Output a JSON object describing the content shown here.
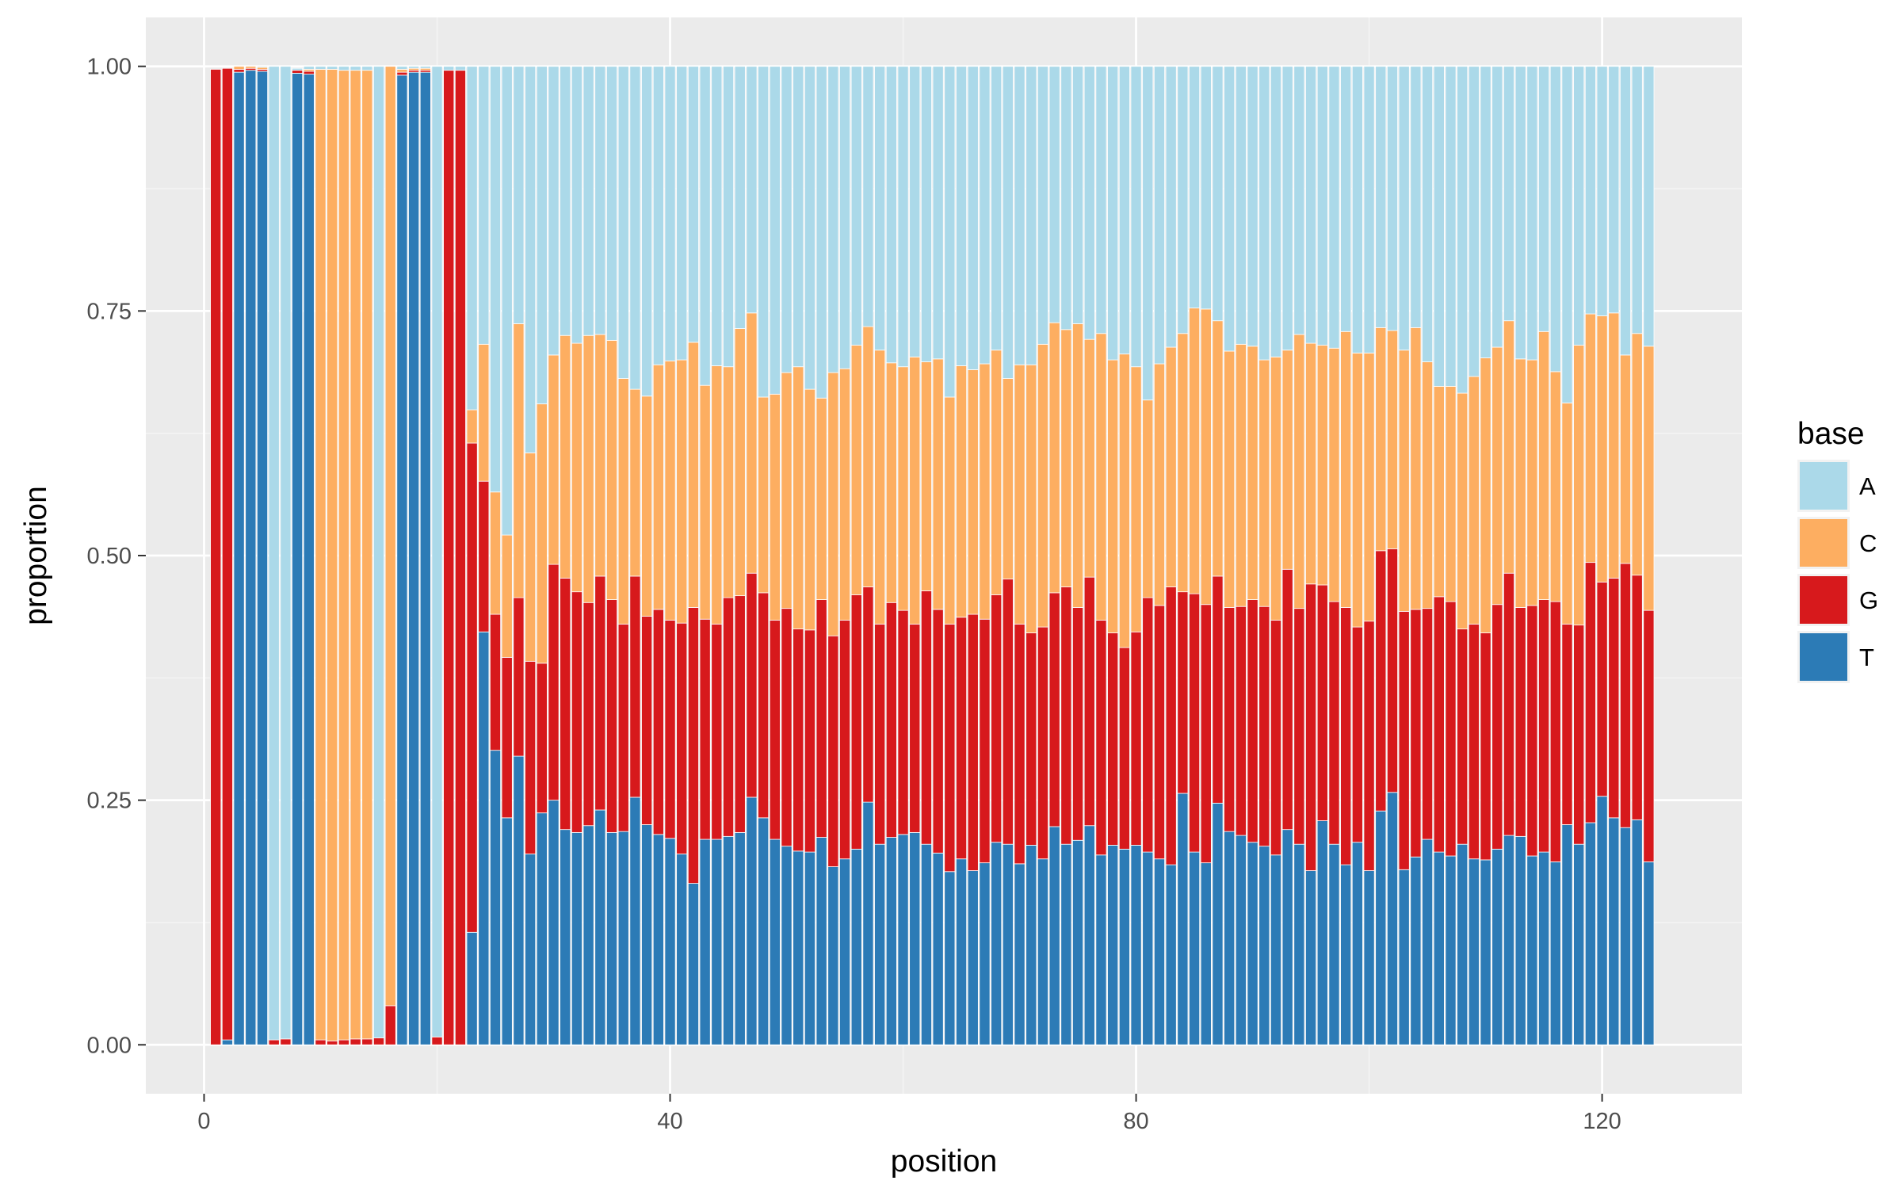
{
  "chart_data": {
    "type": "bar",
    "stacked": true,
    "normalized": true,
    "xlabel": "position",
    "ylabel": "proportion",
    "xlim": [
      -5,
      132
    ],
    "ylim": [
      -0.05,
      1.05
    ],
    "x_ticks": [
      0,
      40,
      80,
      120
    ],
    "y_ticks": [
      0.0,
      0.25,
      0.5,
      0.75,
      1.0
    ],
    "y_tick_labels": [
      "0.00",
      "0.25",
      "0.50",
      "0.75",
      "1.00"
    ],
    "grid": true,
    "legend": {
      "title": "base",
      "placement": "right",
      "entries": [
        "A",
        "C",
        "G",
        "T"
      ]
    },
    "colors": {
      "A": "#abd9e9",
      "C": "#fdae61",
      "G": "#d7191c",
      "T": "#2c7bb6",
      "panel_background": "#ebebeb",
      "grid_major": "#ffffff",
      "grid_minor": "#f5f5f5",
      "text": "#4d4d4d",
      "axis_title": "#000000"
    },
    "stack_order_bottom_to_top": [
      "T",
      "G",
      "C",
      "A"
    ],
    "x": [
      1,
      2,
      3,
      4,
      5,
      6,
      7,
      8,
      9,
      10,
      11,
      12,
      13,
      14,
      15,
      16,
      17,
      18,
      19,
      20,
      21,
      22,
      23,
      24,
      25,
      26,
      27,
      28,
      29,
      30,
      31,
      32,
      33,
      34,
      35,
      36,
      37,
      38,
      39,
      40,
      41,
      42,
      43,
      44,
      45,
      46,
      47,
      48,
      49,
      50,
      51,
      52,
      53,
      54,
      55,
      56,
      57,
      58,
      59,
      60,
      61,
      62,
      63,
      64,
      65,
      66,
      67,
      68,
      69,
      70,
      71,
      72,
      73,
      74,
      75,
      76,
      77,
      78,
      79,
      80,
      81,
      82,
      83,
      84,
      85,
      86,
      87,
      88,
      89,
      90,
      91,
      92,
      93,
      94,
      95,
      96,
      97,
      98,
      99,
      100,
      101,
      102,
      103,
      104,
      105,
      106,
      107,
      108,
      109,
      110,
      111,
      112,
      113,
      114,
      115,
      116,
      117,
      118,
      119,
      120,
      121,
      122,
      123,
      124,
      125
    ],
    "series": [
      {
        "name": "T",
        "values": [
          0.0,
          0.005,
          0.994,
          0.996,
          0.995,
          0.0,
          0.0,
          0.993,
          0.992,
          0.0,
          0.0,
          0.0,
          0.0,
          0.0,
          0.0,
          0.0,
          0.991,
          0.994,
          0.994,
          0.0,
          0.0,
          0.0,
          0.115,
          0.422,
          0.301,
          0.232,
          0.295,
          0.195,
          0.237,
          0.25,
          0.22,
          0.217,
          0.224,
          0.24,
          0.217,
          0.218,
          0.253,
          0.225,
          0.215,
          0.211,
          0.195,
          0.165,
          0.21,
          0.21,
          0.213,
          0.217,
          0.253,
          0.232,
          0.21,
          0.203,
          0.198,
          0.197,
          0.212,
          0.182,
          0.19,
          0.2,
          0.248,
          0.205,
          0.212,
          0.215,
          0.217,
          0.205,
          0.196,
          0.177,
          0.19,
          0.178,
          0.186,
          0.207,
          0.205,
          0.185,
          0.204,
          0.19,
          0.223,
          0.205,
          0.209,
          0.224,
          0.194,
          0.204,
          0.2,
          0.204,
          0.197,
          0.19,
          0.184,
          0.257,
          0.197,
          0.186,
          0.247,
          0.218,
          0.214,
          0.207,
          0.203,
          0.194,
          0.22,
          0.205,
          0.178,
          0.229,
          0.205,
          0.184,
          0.207,
          0.178,
          0.239,
          0.258,
          0.179,
          0.192,
          0.21,
          0.197,
          0.193,
          0.205,
          0.19,
          0.189,
          0.2,
          0.214,
          0.213,
          0.193,
          0.197,
          0.187,
          0.225,
          0.205,
          0.227,
          0.254,
          0.232,
          0.222,
          0.23,
          0.187,
          0.0
        ]
      },
      {
        "name": "G",
        "values": [
          0.997,
          0.993,
          0.003,
          0.002,
          0.002,
          0.005,
          0.006,
          0.003,
          0.003,
          0.005,
          0.004,
          0.005,
          0.006,
          0.006,
          0.007,
          0.04,
          0.003,
          0.002,
          0.002,
          0.008,
          0.996,
          0.996,
          0.5,
          0.154,
          0.139,
          0.164,
          0.162,
          0.197,
          0.153,
          0.241,
          0.257,
          0.246,
          0.228,
          0.239,
          0.238,
          0.212,
          0.226,
          0.213,
          0.23,
          0.223,
          0.236,
          0.282,
          0.225,
          0.22,
          0.244,
          0.242,
          0.229,
          0.23,
          0.224,
          0.243,
          0.227,
          0.227,
          0.243,
          0.236,
          0.244,
          0.26,
          0.22,
          0.225,
          0.24,
          0.229,
          0.213,
          0.259,
          0.249,
          0.253,
          0.247,
          0.262,
          0.249,
          0.253,
          0.271,
          0.245,
          0.217,
          0.237,
          0.239,
          0.263,
          0.238,
          0.254,
          0.24,
          0.217,
          0.206,
          0.218,
          0.26,
          0.259,
          0.284,
          0.206,
          0.264,
          0.264,
          0.232,
          0.229,
          0.234,
          0.248,
          0.245,
          0.24,
          0.266,
          0.241,
          0.293,
          0.241,
          0.248,
          0.263,
          0.22,
          0.255,
          0.266,
          0.249,
          0.264,
          0.253,
          0.236,
          0.261,
          0.26,
          0.22,
          0.24,
          0.232,
          0.25,
          0.268,
          0.234,
          0.256,
          0.258,
          0.266,
          0.205,
          0.224,
          0.266,
          0.219,
          0.245,
          0.27,
          0.25,
          0.257,
          0.0
        ]
      },
      {
        "name": "C",
        "values": [
          0.0,
          0.0,
          0.003,
          0.002,
          0.002,
          0.0,
          0.0,
          0.0,
          0.002,
          0.992,
          0.993,
          0.991,
          0.99,
          0.99,
          0.0,
          0.96,
          0.003,
          0.002,
          0.002,
          0.0,
          0.0,
          0.0,
          0.034,
          0.14,
          0.125,
          0.125,
          0.28,
          0.213,
          0.265,
          0.214,
          0.248,
          0.254,
          0.273,
          0.247,
          0.265,
          0.251,
          0.191,
          0.225,
          0.25,
          0.265,
          0.269,
          0.271,
          0.239,
          0.264,
          0.236,
          0.273,
          0.266,
          0.2,
          0.231,
          0.241,
          0.268,
          0.246,
          0.206,
          0.269,
          0.257,
          0.255,
          0.266,
          0.28,
          0.245,
          0.249,
          0.273,
          0.234,
          0.256,
          0.232,
          0.257,
          0.25,
          0.261,
          0.25,
          0.205,
          0.265,
          0.274,
          0.289,
          0.276,
          0.263,
          0.29,
          0.243,
          0.293,
          0.279,
          0.3,
          0.271,
          0.202,
          0.247,
          0.245,
          0.264,
          0.292,
          0.302,
          0.261,
          0.262,
          0.268,
          0.259,
          0.252,
          0.269,
          0.224,
          0.28,
          0.246,
          0.245,
          0.259,
          0.282,
          0.28,
          0.274,
          0.228,
          0.223,
          0.267,
          0.288,
          0.252,
          0.215,
          0.22,
          0.241,
          0.253,
          0.281,
          0.263,
          0.258,
          0.254,
          0.251,
          0.274,
          0.235,
          0.226,
          0.286,
          0.254,
          0.272,
          0.271,
          0.213,
          0.247,
          0.27,
          0.0
        ]
      },
      {
        "name": "A",
        "values": [
          0.0,
          0.0,
          0.0,
          0.0,
          0.001,
          0.995,
          0.994,
          0.002,
          0.003,
          0.003,
          0.003,
          0.004,
          0.004,
          0.004,
          0.993,
          0.0,
          0.003,
          0.002,
          0.002,
          0.992,
          0.004,
          0.004,
          0.351,
          0.284,
          0.435,
          0.479,
          0.263,
          0.395,
          0.345,
          0.295,
          0.275,
          0.283,
          0.275,
          0.274,
          0.28,
          0.319,
          0.33,
          0.337,
          0.305,
          0.301,
          0.3,
          0.282,
          0.326,
          0.306,
          0.307,
          0.268,
          0.252,
          0.338,
          0.335,
          0.313,
          0.307,
          0.33,
          0.339,
          0.313,
          0.309,
          0.285,
          0.266,
          0.29,
          0.303,
          0.307,
          0.297,
          0.302,
          0.299,
          0.338,
          0.306,
          0.31,
          0.304,
          0.29,
          0.319,
          0.305,
          0.305,
          0.284,
          0.262,
          0.269,
          0.263,
          0.279,
          0.273,
          0.3,
          0.294,
          0.307,
          0.341,
          0.304,
          0.287,
          0.273,
          0.247,
          0.248,
          0.26,
          0.291,
          0.284,
          0.286,
          0.3,
          0.297,
          0.29,
          0.274,
          0.283,
          0.285,
          0.288,
          0.271,
          0.293,
          0.293,
          0.267,
          0.27,
          0.29,
          0.267,
          0.302,
          0.327,
          0.327,
          0.334,
          0.317,
          0.298,
          0.287,
          0.26,
          0.299,
          0.3,
          0.271,
          0.312,
          0.344,
          0.285,
          0.253,
          0.255,
          0.252,
          0.295,
          0.273,
          0.286,
          0.0
        ]
      }
    ]
  }
}
